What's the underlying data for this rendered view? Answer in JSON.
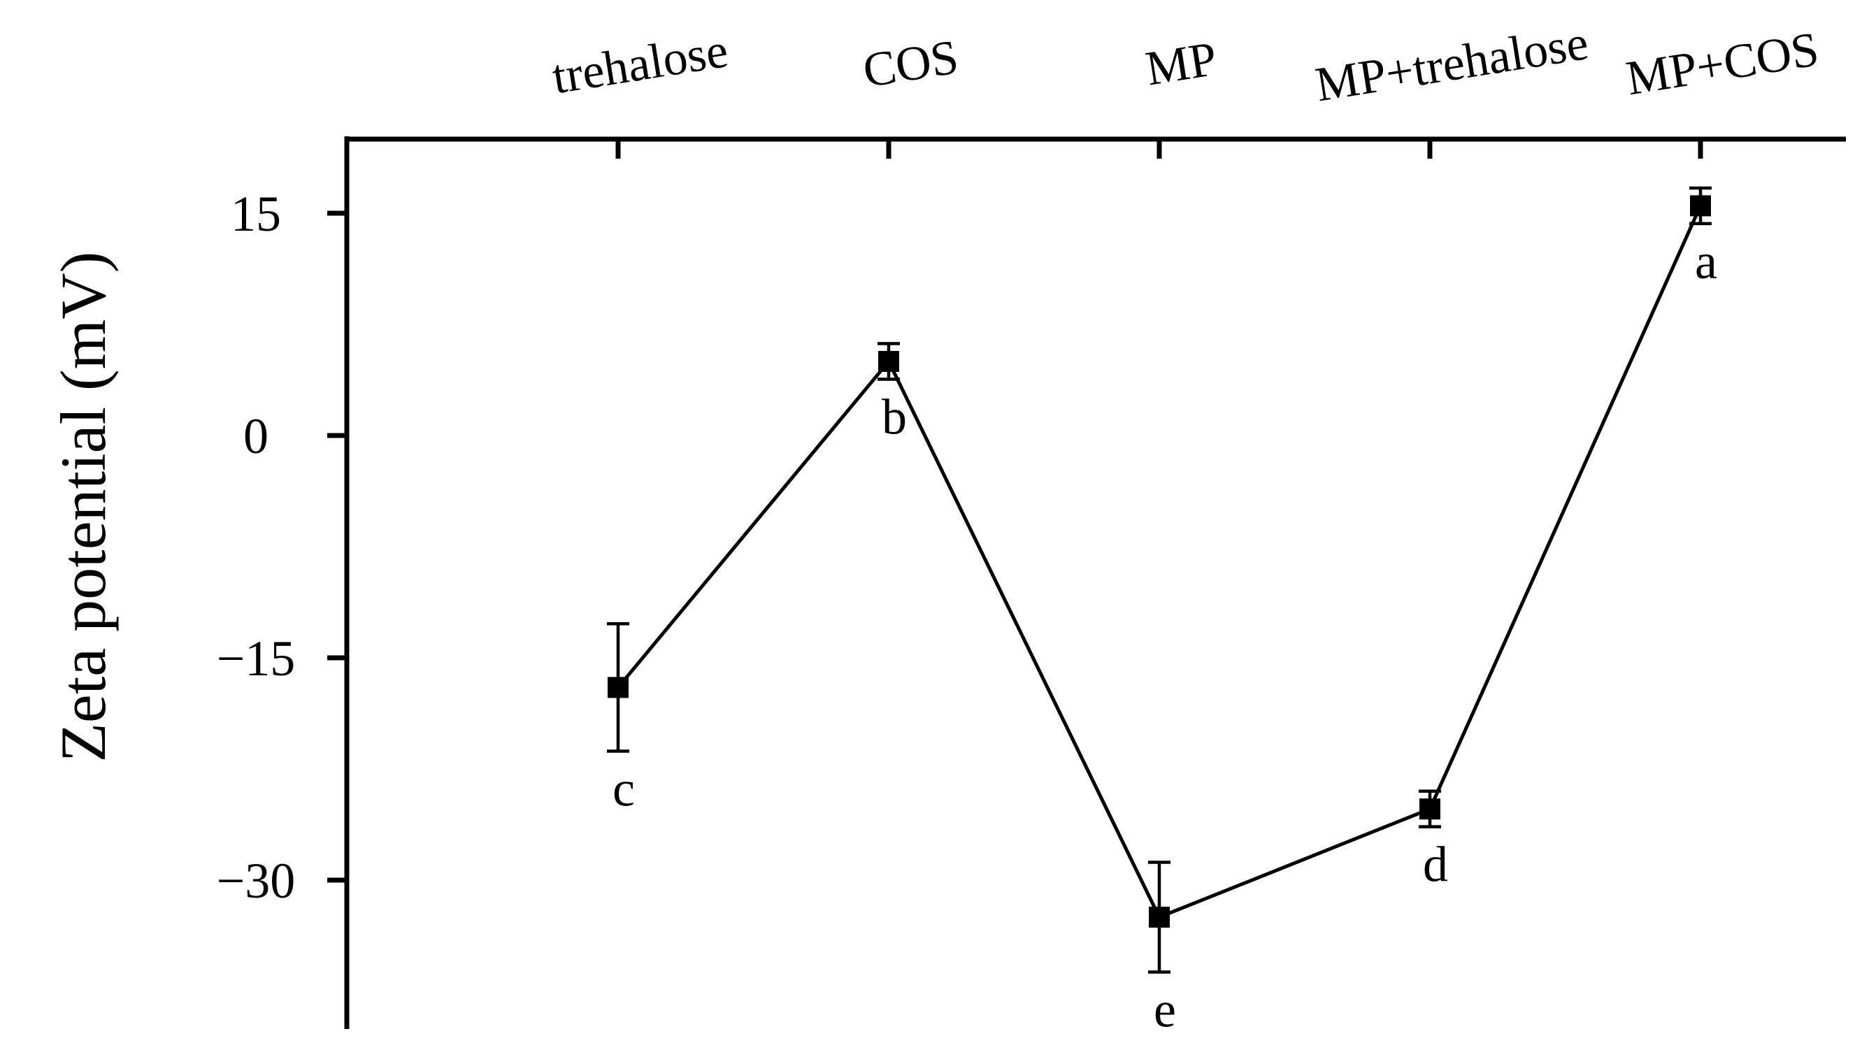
{
  "chart_data": {
    "type": "line",
    "title": "",
    "xlabel": "",
    "ylabel": "Zeta potential (mV)",
    "categories": [
      "trehalose",
      "COS",
      "MP",
      "MP+trehalose",
      "MP+COS"
    ],
    "y_tick_values": [
      15,
      0,
      -15,
      -30
    ],
    "y_tick_labels": [
      "15",
      "0",
      "−15",
      "−30"
    ],
    "ylim": [
      -40,
      20
    ],
    "x_axis_position": "top",
    "grid": false,
    "legend": "none",
    "series": [
      {
        "values": [
          -17.0,
          5.0,
          -32.5,
          -25.2,
          15.5
        ],
        "errors": [
          4.3,
          1.2,
          3.7,
          1.2,
          1.2
        ],
        "significance_letters": [
          "c",
          "b",
          "e",
          "d",
          "a"
        ],
        "marker": "square",
        "color": "#000000"
      }
    ]
  }
}
